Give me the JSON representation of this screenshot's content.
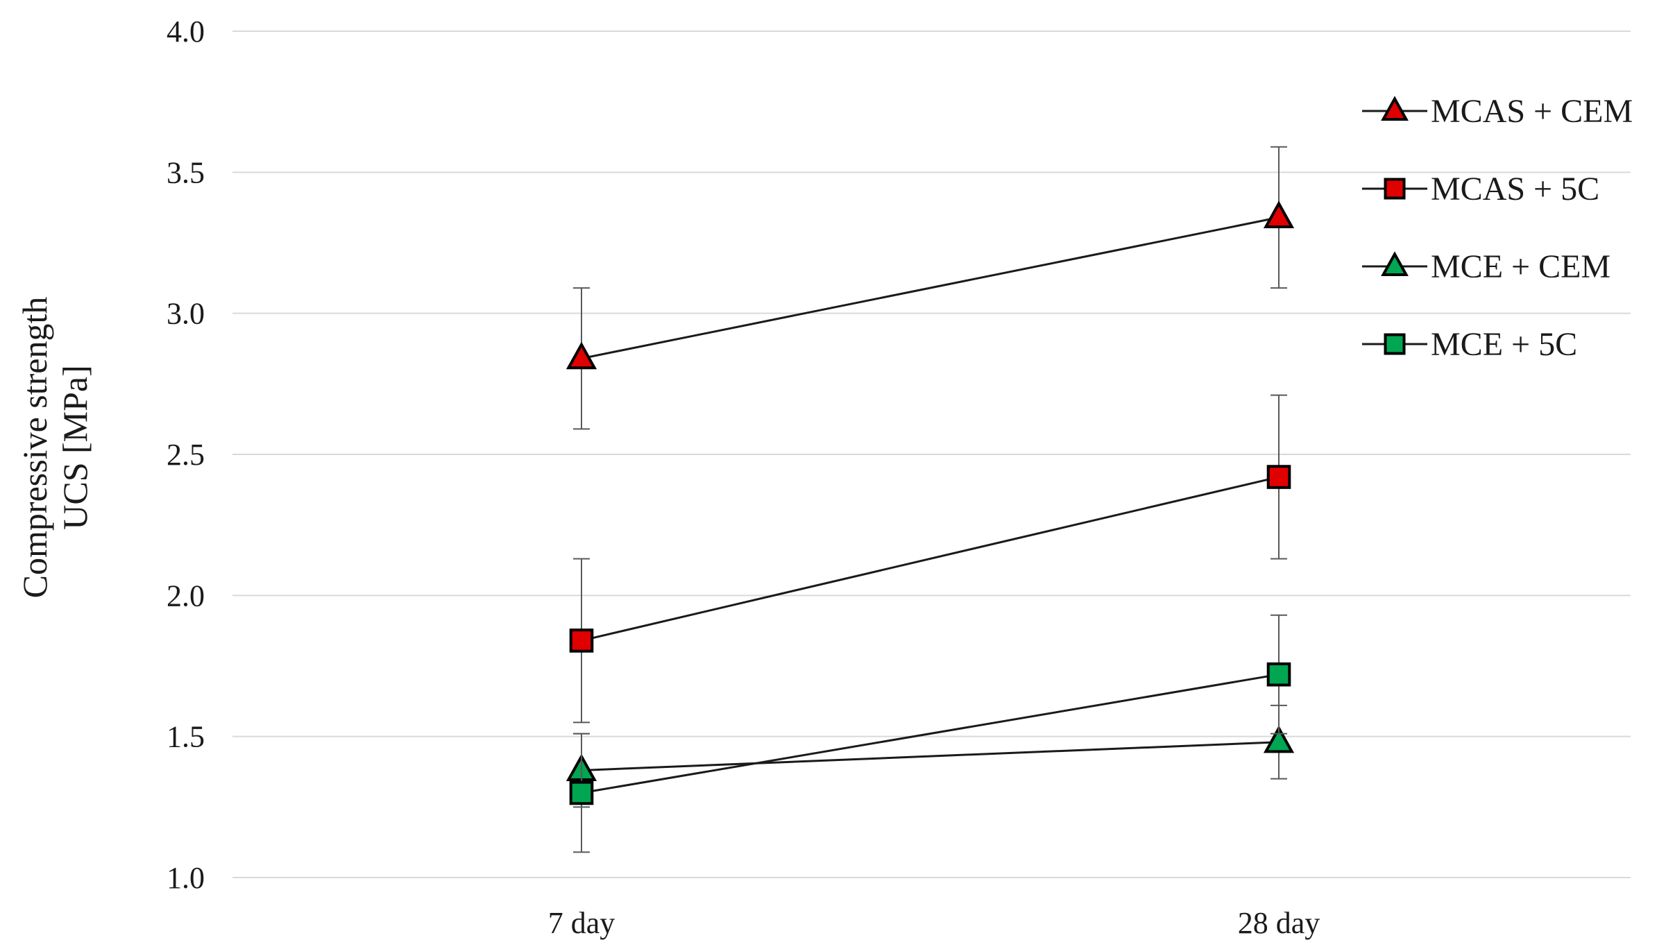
{
  "chart_data": {
    "type": "line",
    "title": "",
    "xlabel": "",
    "ylabel_lines": [
      "Compressive strength",
      "UCS [MPa]"
    ],
    "categories": [
      "7 day",
      "28 day"
    ],
    "ylim": [
      1.0,
      4.0
    ],
    "yticks": [
      "1.0",
      "1.5",
      "2.0",
      "2.5",
      "3.0",
      "3.5",
      "4.0"
    ],
    "grid": true,
    "legend_position": "top-right",
    "series": [
      {
        "name": "MCAS + CEM",
        "marker": "triangle",
        "color": "#e00000",
        "values": [
          2.84,
          3.34
        ],
        "errors": [
          0.25,
          0.25
        ]
      },
      {
        "name": "MCAS + 5C",
        "marker": "square",
        "color": "#e00000",
        "values": [
          1.84,
          2.42
        ],
        "errors": [
          0.29,
          0.29
        ]
      },
      {
        "name": "MCE + CEM",
        "marker": "triangle",
        "color": "#00a651",
        "values": [
          1.38,
          1.48
        ],
        "errors": [
          0.13,
          0.13
        ]
      },
      {
        "name": "MCE + 5C",
        "marker": "square",
        "color": "#00a651",
        "values": [
          1.3,
          1.72
        ],
        "errors": [
          0.21,
          0.21
        ]
      }
    ],
    "line_color": "#1a1a1a",
    "grid_color": "#d9d9d9"
  }
}
